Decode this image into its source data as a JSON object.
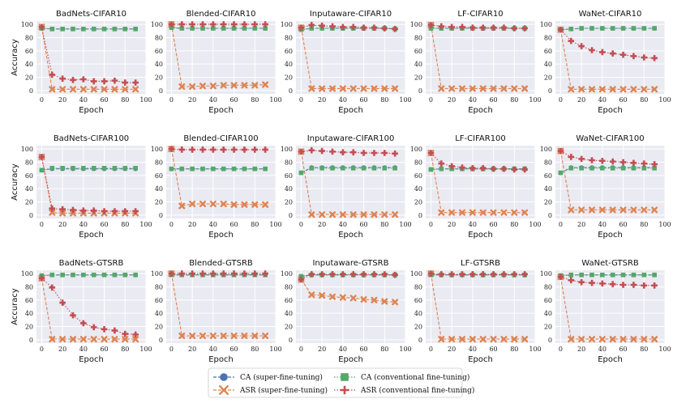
{
  "chart_data": {
    "type": "line",
    "xlabel": "Epoch",
    "ylabel": "Accuracy",
    "xlim": [
      -5,
      100
    ],
    "ylim": [
      -5,
      105
    ],
    "xticks": [
      0,
      20,
      40,
      60,
      80,
      100
    ],
    "yticks": [
      0,
      20,
      40,
      60,
      80,
      100
    ],
    "x": [
      0,
      10,
      20,
      30,
      40,
      50,
      60,
      70,
      80,
      90
    ],
    "colors": {
      "ca_super": "#4c72b0",
      "asr_super": "#dd8452",
      "ca_conv": "#55a868",
      "asr_conv": "#c44e52",
      "panel_bg": "#eaeaf2"
    },
    "legend": {
      "position": "bottom-center",
      "entries": [
        {
          "key": "ca_super",
          "label": "CA (super-fine-tuning)",
          "marker": "circle"
        },
        {
          "key": "asr_super",
          "label": "ASR (super-fine-tuning)",
          "marker": "x"
        },
        {
          "key": "ca_conv",
          "label": "CA (conventional fine-tuning)",
          "marker": "square"
        },
        {
          "key": "asr_conv",
          "label": "ASR (conventional fine-tuning)",
          "marker": "plus"
        }
      ]
    },
    "panels": [
      {
        "title": "BadNets-CIFAR10",
        "series": {
          "ca_super": [
            94,
            93,
            93,
            93,
            93,
            93,
            93,
            93,
            93,
            93
          ],
          "asr_super": [
            96,
            2,
            2,
            2,
            2,
            2,
            2,
            2,
            2,
            2
          ],
          "ca_conv": [
            94,
            93,
            93,
            93,
            93,
            93,
            93,
            93,
            93,
            93
          ],
          "asr_conv": [
            96,
            24,
            18,
            16,
            17,
            14,
            14,
            15,
            12,
            12
          ]
        }
      },
      {
        "title": "Blended-CIFAR10",
        "series": {
          "ca_super": [
            95,
            94,
            94,
            94,
            94,
            94,
            94,
            94,
            94,
            94
          ],
          "asr_super": [
            100,
            6,
            6,
            7,
            7,
            8,
            8,
            8,
            8,
            9
          ],
          "ca_conv": [
            95,
            94,
            94,
            94,
            94,
            94,
            94,
            94,
            94,
            94
          ],
          "asr_conv": [
            100,
            100,
            100,
            100,
            100,
            100,
            100,
            100,
            100,
            100
          ]
        }
      },
      {
        "title": "Inputaware-CIFAR10",
        "series": {
          "ca_super": [
            92,
            94,
            94,
            94,
            94,
            94,
            94,
            94,
            94,
            93
          ],
          "asr_super": [
            95,
            3,
            3,
            3,
            3,
            3,
            3,
            3,
            3,
            3
          ],
          "ca_conv": [
            92,
            94,
            94,
            94,
            94,
            94,
            94,
            94,
            94,
            93
          ],
          "asr_conv": [
            95,
            99,
            98,
            97,
            96,
            96,
            95,
            95,
            94,
            93
          ]
        }
      },
      {
        "title": "LF-CIFAR10",
        "series": {
          "ca_super": [
            94,
            94,
            94,
            94,
            94,
            94,
            94,
            94,
            94,
            94
          ],
          "asr_super": [
            99,
            3,
            3,
            3,
            3,
            3,
            3,
            3,
            3,
            3
          ],
          "ca_conv": [
            94,
            94,
            94,
            94,
            94,
            94,
            94,
            94,
            94,
            94
          ],
          "asr_conv": [
            99,
            97,
            96,
            96,
            95,
            95,
            95,
            95,
            94,
            94
          ]
        }
      },
      {
        "title": "WaNet-CIFAR10",
        "series": {
          "ca_super": [
            92,
            93,
            94,
            94,
            94,
            94,
            94,
            94,
            94,
            94
          ],
          "asr_super": [
            92,
            2,
            2,
            2,
            2,
            2,
            2,
            2,
            2,
            2
          ],
          "ca_conv": [
            92,
            93,
            94,
            94,
            94,
            94,
            94,
            94,
            94,
            94
          ],
          "asr_conv": [
            92,
            75,
            67,
            61,
            58,
            56,
            54,
            52,
            50,
            49
          ]
        }
      },
      {
        "title": "BadNets-CIFAR100",
        "series": {
          "ca_super": [
            68,
            70,
            70,
            70,
            70,
            70,
            70,
            70,
            70,
            70
          ],
          "asr_super": [
            88,
            4,
            3,
            3,
            3,
            3,
            3,
            3,
            3,
            3
          ],
          "ca_conv": [
            68,
            71,
            71,
            71,
            71,
            71,
            71,
            71,
            71,
            71
          ],
          "asr_conv": [
            88,
            10,
            9,
            8,
            7,
            7,
            6,
            6,
            6,
            6
          ]
        }
      },
      {
        "title": "Blended-CIFAR100",
        "series": {
          "ca_super": [
            70,
            70,
            70,
            70,
            70,
            70,
            70,
            70,
            70,
            70
          ],
          "asr_super": [
            100,
            14,
            17,
            17,
            17,
            17,
            16,
            16,
            16,
            16
          ],
          "ca_conv": [
            70,
            70,
            70,
            70,
            70,
            70,
            70,
            70,
            70,
            70
          ],
          "asr_conv": [
            100,
            99,
            99,
            99,
            99,
            99,
            99,
            99,
            99,
            99
          ]
        }
      },
      {
        "title": "Inputaware-CIFAR100",
        "series": {
          "ca_super": [
            64,
            72,
            72,
            72,
            72,
            72,
            72,
            72,
            72,
            72
          ],
          "asr_super": [
            96,
            1,
            1,
            1,
            1,
            1,
            1,
            1,
            1,
            1
          ],
          "ca_conv": [
            64,
            71,
            71,
            71,
            71,
            71,
            71,
            71,
            71,
            71
          ],
          "asr_conv": [
            96,
            98,
            97,
            96,
            95,
            95,
            94,
            94,
            94,
            93
          ]
        }
      },
      {
        "title": "LF-CIFAR100",
        "series": {
          "ca_super": [
            69,
            70,
            70,
            70,
            70,
            70,
            70,
            70,
            70,
            70
          ],
          "asr_super": [
            94,
            4,
            4,
            4,
            4,
            4,
            4,
            4,
            4,
            4
          ],
          "ca_conv": [
            69,
            70,
            70,
            70,
            70,
            70,
            70,
            70,
            70,
            70
          ],
          "asr_conv": [
            94,
            78,
            74,
            72,
            71,
            71,
            70,
            70,
            69,
            69
          ]
        }
      },
      {
        "title": "WaNet-CIFAR100",
        "series": {
          "ca_super": [
            64,
            72,
            72,
            72,
            72,
            72,
            72,
            72,
            72,
            72
          ],
          "asr_super": [
            97,
            8,
            8,
            8,
            8,
            8,
            8,
            8,
            8,
            8
          ],
          "ca_conv": [
            64,
            71,
            71,
            71,
            71,
            71,
            71,
            71,
            71,
            71
          ],
          "asr_conv": [
            97,
            88,
            85,
            83,
            82,
            81,
            80,
            79,
            78,
            77
          ]
        }
      },
      {
        "title": "BadNets-GTSRB",
        "series": {
          "ca_super": [
            97,
            98,
            98,
            98,
            98,
            98,
            98,
            98,
            98,
            98
          ],
          "asr_super": [
            93,
            1,
            1,
            1,
            1,
            1,
            1,
            1,
            1,
            1
          ],
          "ca_conv": [
            97,
            98,
            98,
            98,
            98,
            98,
            98,
            98,
            98,
            98
          ],
          "asr_conv": [
            93,
            79,
            56,
            37,
            25,
            19,
            16,
            14,
            9,
            8
          ]
        }
      },
      {
        "title": "Blended-GTSRB",
        "series": {
          "ca_super": [
            98,
            98,
            98,
            98,
            98,
            98,
            98,
            98,
            98,
            98
          ],
          "asr_super": [
            100,
            6,
            6,
            6,
            6,
            6,
            6,
            6,
            6,
            6
          ],
          "ca_conv": [
            98,
            98,
            98,
            98,
            98,
            98,
            98,
            98,
            98,
            98
          ],
          "asr_conv": [
            100,
            100,
            100,
            100,
            100,
            100,
            100,
            100,
            100,
            100
          ]
        }
      },
      {
        "title": "Inputaware-GTSRB",
        "series": {
          "ca_super": [
            96,
            98,
            98,
            98,
            98,
            98,
            98,
            98,
            98,
            98
          ],
          "asr_super": [
            91,
            68,
            67,
            65,
            64,
            63,
            61,
            60,
            58,
            57
          ],
          "ca_conv": [
            96,
            98,
            98,
            98,
            98,
            98,
            98,
            98,
            98,
            98
          ],
          "asr_conv": [
            91,
            99,
            99,
            99,
            99,
            99,
            99,
            99,
            99,
            98
          ]
        }
      },
      {
        "title": "LF-GTSRB",
        "series": {
          "ca_super": [
            98,
            98,
            98,
            98,
            98,
            98,
            98,
            98,
            98,
            98
          ],
          "asr_super": [
            100,
            1,
            1,
            1,
            1,
            1,
            1,
            1,
            1,
            1
          ],
          "ca_conv": [
            98,
            98,
            98,
            98,
            98,
            98,
            98,
            98,
            98,
            98
          ],
          "asr_conv": [
            100,
            99,
            99,
            99,
            99,
            99,
            99,
            99,
            99,
            99
          ]
        }
      },
      {
        "title": "WaNet-GTSRB",
        "series": {
          "ca_super": [
            97,
            98,
            98,
            98,
            98,
            98,
            98,
            98,
            98,
            98
          ],
          "asr_super": [
            95,
            1,
            1,
            1,
            1,
            1,
            1,
            1,
            1,
            1
          ],
          "ca_conv": [
            97,
            98,
            98,
            98,
            98,
            98,
            98,
            98,
            98,
            98
          ],
          "asr_conv": [
            95,
            90,
            87,
            86,
            85,
            84,
            83,
            83,
            82,
            82
          ]
        }
      }
    ]
  }
}
